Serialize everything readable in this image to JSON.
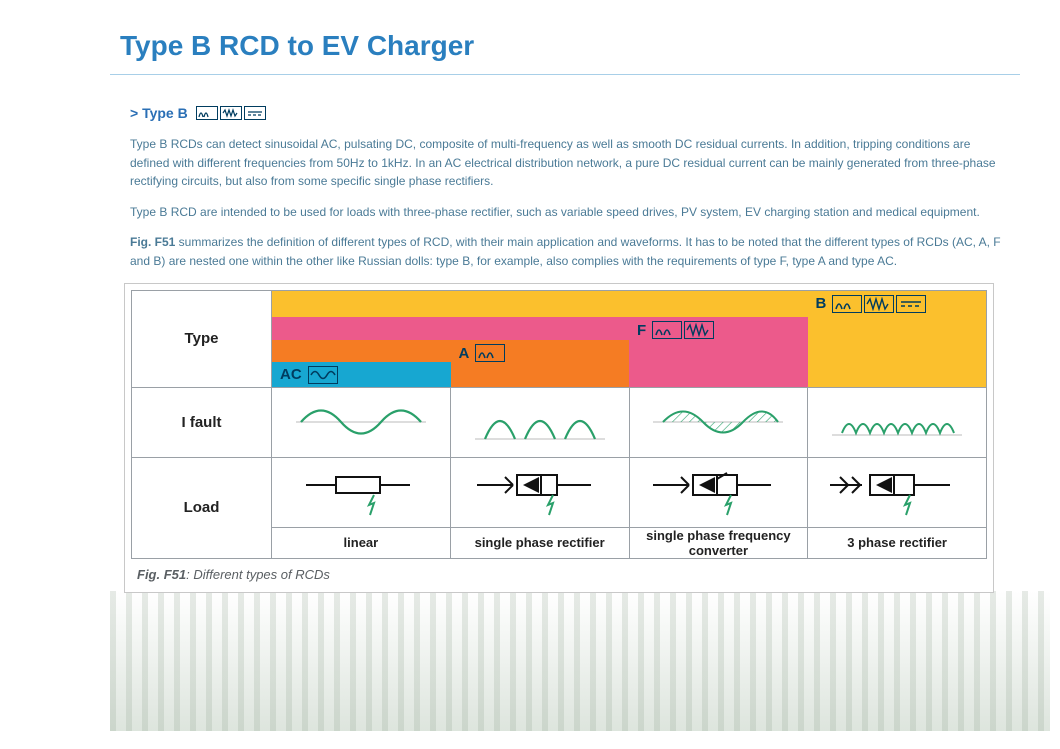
{
  "title": "Type B RCD to EV Charger",
  "section_label": "> Type B",
  "paragraphs": {
    "p1": "Type B RCDs can detect sinusoidal AC, pulsating DC, composite of multi-frequency as well as smooth DC residual currents. In addition, tripping conditions are defined with different frequencies from 50Hz to 1kHz. In an AC electrical distribution network, a pure DC residual current can be mainly generated from three-phase rectifying circuits, but also from some specific single phase rectifiers.",
    "p2": "Type B RCD are intended to be used for loads with three-phase rectifier, such as variable speed drives, PV system, EV charging station and medical equipment.",
    "p3_prefix": "Fig. F51",
    "p3_rest": " summarizes the definition of different types of RCD, with their main application and waveforms. It has to be noted that the different types of RCDs (AC, A, F and B) are nested one within the other like Russian dolls: type B, for example, also complies with the requirements of type F, type A and type AC."
  },
  "figure": {
    "caption_prefix": "Fig. F51",
    "caption_rest": ": Different types of RCDs",
    "row_labels": {
      "type": "Type",
      "fault": "I fault",
      "load": "Load"
    },
    "layers": [
      {
        "name": "B",
        "color": "#fbc02d",
        "height_pct": 100,
        "badge_icons": [
          "half-sine",
          "spring",
          "dc-dashes"
        ]
      },
      {
        "name": "F",
        "color": "#ec5a8b",
        "height_pct": 72,
        "badge_icons": [
          "half-sine",
          "spring"
        ]
      },
      {
        "name": "A",
        "color": "#f57c23",
        "height_pct": 48,
        "badge_icons": [
          "half-sine"
        ]
      },
      {
        "name": "AC",
        "color": "#17a7d1",
        "height_pct": 26,
        "badge_icons": [
          "sine"
        ]
      }
    ],
    "columns": [
      {
        "type_letter": "AC",
        "fault_kind": "sine",
        "load_label": "linear",
        "load_kind": "resistor"
      },
      {
        "type_letter": "A",
        "fault_kind": "half-sine",
        "load_label": "single phase rectifier",
        "load_kind": "diode"
      },
      {
        "type_letter": "F",
        "fault_kind": "composite",
        "load_label": "single phase frequency converter",
        "load_kind": "thyristor"
      },
      {
        "type_letter": "B",
        "fault_kind": "smooth-dc",
        "load_label": "3 phase rectifier",
        "load_kind": "diode3"
      }
    ],
    "colors": {
      "wave_stroke": "#2aa06a",
      "symbol_stroke": "#111111",
      "bolt_stroke": "#2aa06a",
      "border": "#9aa0a6"
    }
  }
}
